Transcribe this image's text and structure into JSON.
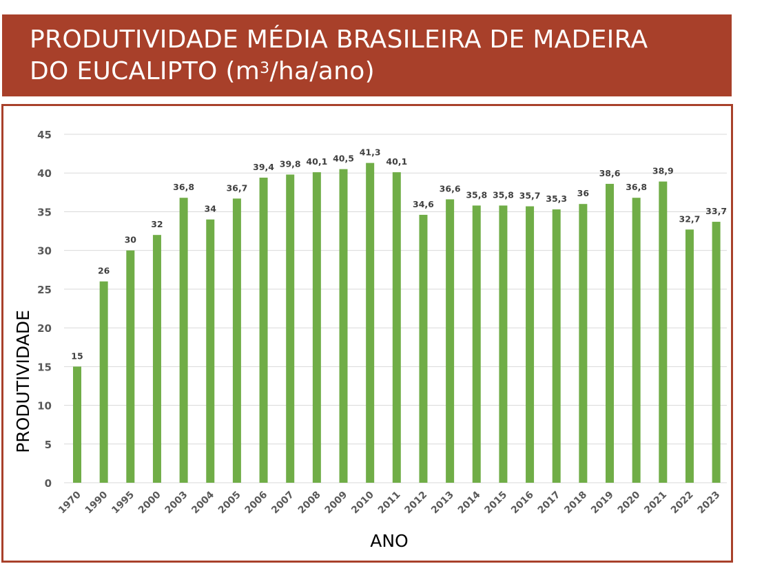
{
  "title": {
    "line1": "PRODUTIVIDADE MÉDIA BRASILEIRA DE MADEIRA",
    "line2_prefix": "DO EUCALIPTO (m",
    "line2_sup": "3",
    "line2_suffix": "/ha/ano)"
  },
  "colors": {
    "header_bg": "#a8402a",
    "bar": "#70ad47",
    "grid": "#d9d9d9",
    "tick_text": "#595959",
    "data_label": "#404040"
  },
  "chart_data": {
    "type": "bar",
    "title": "PRODUTIVIDADE MÉDIA BRASILEIRA DE MADEIRA DO EUCALIPTO (m3/ha/ano)",
    "xlabel": "ANO",
    "ylabel": "PRODUTIVIDADE",
    "ylim": [
      0,
      45
    ],
    "yticks": [
      0,
      5,
      10,
      15,
      20,
      25,
      30,
      35,
      40,
      45
    ],
    "grid": true,
    "legend": "none",
    "categories": [
      "1970",
      "1990",
      "1995",
      "2000",
      "2003",
      "2004",
      "2005",
      "2006",
      "2007",
      "2008",
      "2009",
      "2010",
      "2011",
      "2012",
      "2013",
      "2014",
      "2015",
      "2016",
      "2017",
      "2018",
      "2019",
      "2020",
      "2021",
      "2022",
      "2023"
    ],
    "values": [
      15,
      26,
      30,
      32,
      36.8,
      34,
      36.7,
      39.4,
      39.8,
      40.1,
      40.5,
      41.3,
      40.1,
      34.6,
      36.6,
      35.8,
      35.8,
      35.7,
      35.3,
      36,
      38.6,
      36.8,
      38.9,
      32.7,
      33.7
    ],
    "data_labels": [
      "15",
      "26",
      "30",
      "32",
      "36,8",
      "34",
      "36,7",
      "39,4",
      "39,8",
      "40,1",
      "40,5",
      "41,3",
      "40,1",
      "34,6",
      "36,6",
      "35,8",
      "35,8",
      "35,7",
      "35,3",
      "36",
      "38,6",
      "36,8",
      "38,9",
      "32,7",
      "33,7"
    ]
  }
}
